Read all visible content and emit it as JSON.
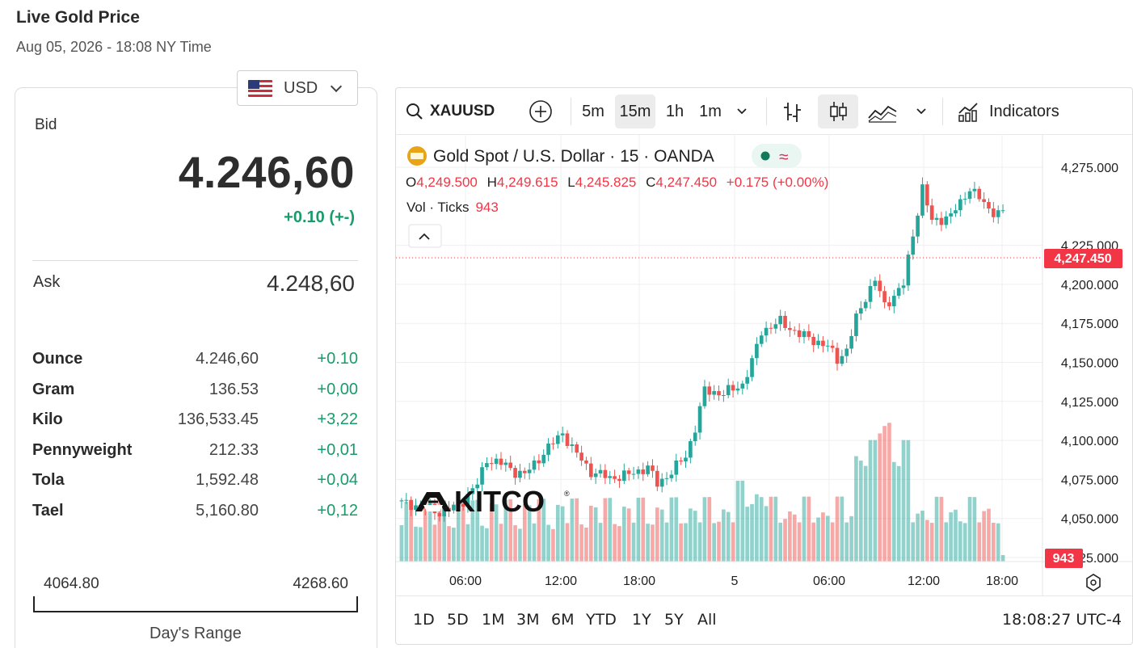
{
  "header": {
    "title": "Live Gold Price",
    "subtitle": "Aug 05, 2026 - 18:08 NY Time"
  },
  "currency": {
    "selected": "USD"
  },
  "quote": {
    "bid_label": "Bid",
    "bid": "4.246,60",
    "bid_change": "+0.10 (+-)",
    "ask_label": "Ask",
    "ask": "4.248,60"
  },
  "units": [
    {
      "name": "Ounce",
      "price": "4.246,60",
      "change": "+0.10"
    },
    {
      "name": "Gram",
      "price": "136.53",
      "change": "+0,00"
    },
    {
      "name": "Kilo",
      "price": "136,533.45",
      "change": "+3,22"
    },
    {
      "name": "Pennyweight",
      "price": "212.33",
      "change": "+0,01"
    },
    {
      "name": "Tola",
      "price": "1,592.48",
      "change": "+0,04"
    },
    {
      "name": "Tael",
      "price": "5,160.80",
      "change": "+0,12"
    }
  ],
  "day_range": {
    "low": "4064.80",
    "high": "4268.60",
    "caption": "Day's Range"
  },
  "toolbar": {
    "symbol": "XAUUSD",
    "intervals": [
      "5m",
      "15m",
      "1h",
      "1m"
    ],
    "active_interval": "15m",
    "indicators_label": "Indicators"
  },
  "legend": {
    "title": "Gold Spot / U.S. Dollar · 15 · OANDA",
    "o_label": "O",
    "o": "4,249.500",
    "h_label": "H",
    "h": "4,249.615",
    "l_label": "L",
    "l": "4,245.825",
    "c_label": "C",
    "c": "4,247.450",
    "change": "+0.175 (+0.00%)",
    "vol_label": "Vol · Ticks",
    "vol": "943"
  },
  "watermark": "KITCO",
  "periods": [
    "1D",
    "5D",
    "1M",
    "3M",
    "6M",
    "YTD",
    "1Y",
    "5Y",
    "All"
  ],
  "clock": "18:08:27 UTC-4",
  "colors": {
    "up": "#26a69a",
    "down": "#ef5350",
    "positive_text": "#1a9b6a",
    "price_tag": "#f23645"
  },
  "chart_data": {
    "type": "candlestick",
    "y_ticks": [
      "4,275.000",
      "4,225.000",
      "4,200.000",
      "4,175.000",
      "4,150.000",
      "4,125.000",
      "4,100.000",
      "4,075.000",
      "4,050.000",
      "4,025.000"
    ],
    "x_ticks": [
      "06:00",
      "12:00",
      "18:00",
      "5",
      "06:00",
      "12:00",
      "18:00"
    ],
    "last_price": "4,247.450",
    "last_volume": "943",
    "ylim": [
      4025,
      4290
    ],
    "close_path": [
      [
        0,
        4060
      ],
      [
        4,
        4058
      ],
      [
        8,
        4054
      ],
      [
        12,
        4058
      ],
      [
        16,
        4072
      ],
      [
        18,
        4088
      ],
      [
        22,
        4084
      ],
      [
        24,
        4080
      ],
      [
        26,
        4078
      ],
      [
        30,
        4092
      ],
      [
        34,
        4105
      ],
      [
        36,
        4095
      ],
      [
        40,
        4080
      ],
      [
        44,
        4076
      ],
      [
        48,
        4078
      ],
      [
        52,
        4083
      ],
      [
        54,
        4072
      ],
      [
        57,
        4080
      ],
      [
        60,
        4090
      ],
      [
        62,
        4108
      ],
      [
        64,
        4132
      ],
      [
        68,
        4130
      ],
      [
        72,
        4136
      ],
      [
        74,
        4150
      ],
      [
        76,
        4170
      ],
      [
        80,
        4176
      ],
      [
        84,
        4168
      ],
      [
        88,
        4163
      ],
      [
        90,
        4160
      ],
      [
        92,
        4152
      ],
      [
        94,
        4158
      ],
      [
        96,
        4178
      ],
      [
        98,
        4192
      ],
      [
        100,
        4203
      ],
      [
        102,
        4186
      ],
      [
        106,
        4200
      ],
      [
        108,
        4232
      ],
      [
        110,
        4262
      ],
      [
        112,
        4240
      ],
      [
        114,
        4242
      ],
      [
        116,
        4244
      ],
      [
        118,
        4252
      ],
      [
        120,
        4262
      ],
      [
        122,
        4255
      ],
      [
        124,
        4248
      ],
      [
        126,
        4246
      ],
      [
        127,
        4247
      ]
    ]
  }
}
